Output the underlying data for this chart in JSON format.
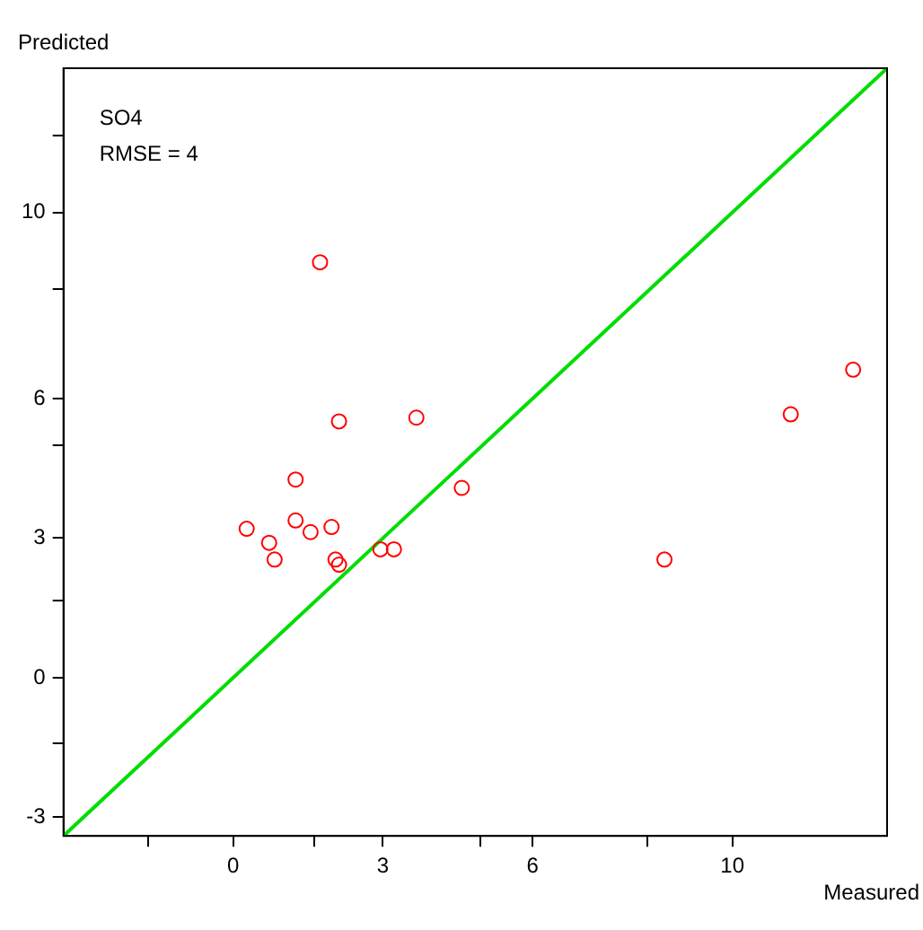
{
  "chart_data": {
    "type": "scatter",
    "xlabel": "Measured",
    "ylabel": "Predicted",
    "annotations": [
      "SO4",
      "RMSE = 4"
    ],
    "xlim": [
      -3.4,
      13.1
    ],
    "ylim": [
      -3.4,
      13.1
    ],
    "xticks": [
      {
        "value": -1.7,
        "label": null
      },
      0,
      {
        "value": 1.63,
        "label": null
      },
      3,
      {
        "value": 4.96,
        "label": null
      },
      6,
      {
        "value": 8.3,
        "label": null
      },
      10
    ],
    "yticks": [
      -3,
      {
        "value": -1.4,
        "label": null
      },
      0,
      {
        "value": 1.65,
        "label": null
      },
      3,
      {
        "value": 5.0,
        "label": null
      },
      6,
      {
        "value": 8.35,
        "label": null
      },
      10,
      {
        "value": 11.65,
        "label": null
      }
    ],
    "grid": false,
    "legend": false,
    "marker": "circle",
    "series": [
      {
        "color": "#ff0000",
        "x": [
          0.27,
          0.72,
          0.83,
          1.25,
          1.25,
          1.55,
          1.74,
          1.97,
          2.05,
          2.12,
          2.12,
          2.95,
          3.22,
          3.67,
          4.58,
          8.64,
          11.17,
          12.42
        ],
        "values": [
          3.2,
          2.9,
          2.54,
          4.26,
          3.38,
          3.13,
          8.93,
          3.24,
          2.54,
          2.43,
          5.51,
          2.76,
          2.76,
          5.59,
          4.08,
          2.54,
          5.66,
          6.62
        ]
      },
      {
        "type": "line",
        "marker": "none",
        "color": "#00dd00",
        "x": [
          -3.4,
          13.1
        ],
        "values": [
          -3.4,
          13.1
        ]
      }
    ]
  }
}
